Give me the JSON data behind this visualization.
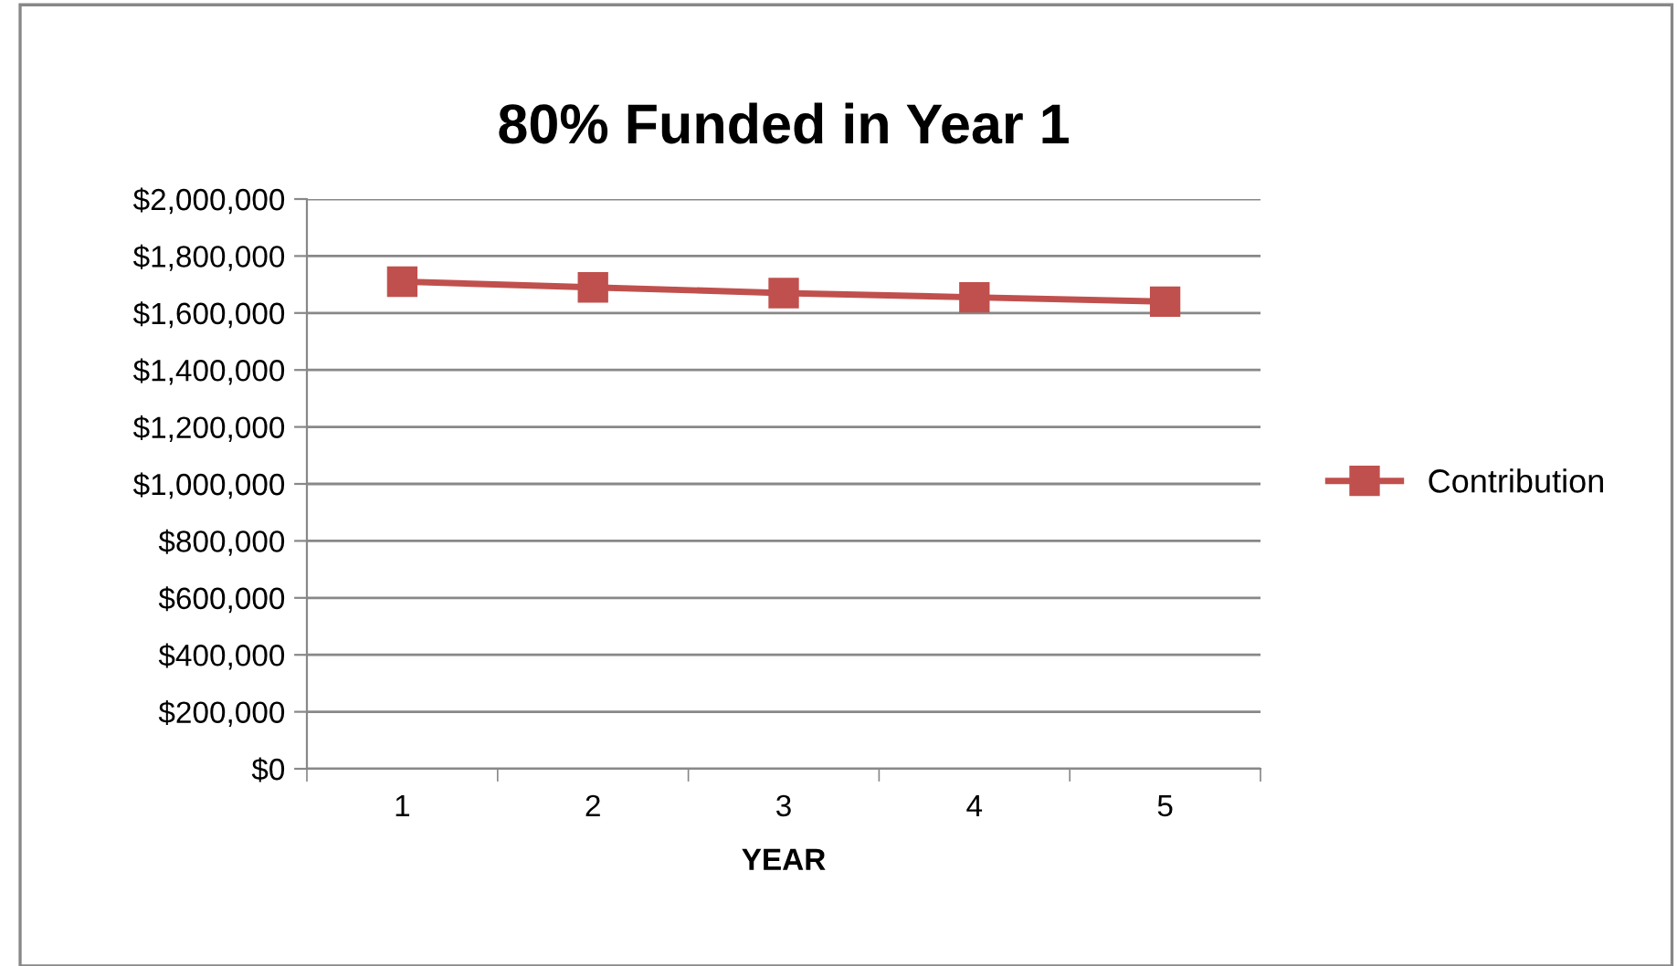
{
  "chart_data": {
    "type": "line",
    "title": "80% Funded in Year 1",
    "xlabel": "YEAR",
    "categories": [
      "1",
      "2",
      "3",
      "4",
      "5"
    ],
    "series": [
      {
        "name": "Contribution",
        "color": "#c0504d",
        "values": [
          1710000,
          1690000,
          1670000,
          1655000,
          1640000
        ]
      }
    ],
    "ylim": [
      0,
      2000000
    ],
    "yticks": [
      {
        "value": 0,
        "label": "$0"
      },
      {
        "value": 200000,
        "label": "$200,000"
      },
      {
        "value": 400000,
        "label": "$400,000"
      },
      {
        "value": 600000,
        "label": "$600,000"
      },
      {
        "value": 800000,
        "label": "$800,000"
      },
      {
        "value": 1000000,
        "label": "$1,000,000"
      },
      {
        "value": 1200000,
        "label": "$1,200,000"
      },
      {
        "value": 1400000,
        "label": "$1,400,000"
      },
      {
        "value": 1600000,
        "label": "$1,600,000"
      },
      {
        "value": 1800000,
        "label": "$1,800,000"
      },
      {
        "value": 2000000,
        "label": "$2,000,000"
      }
    ],
    "grid": "y",
    "legend": "right",
    "marker": "square",
    "line_style": "solid"
  }
}
